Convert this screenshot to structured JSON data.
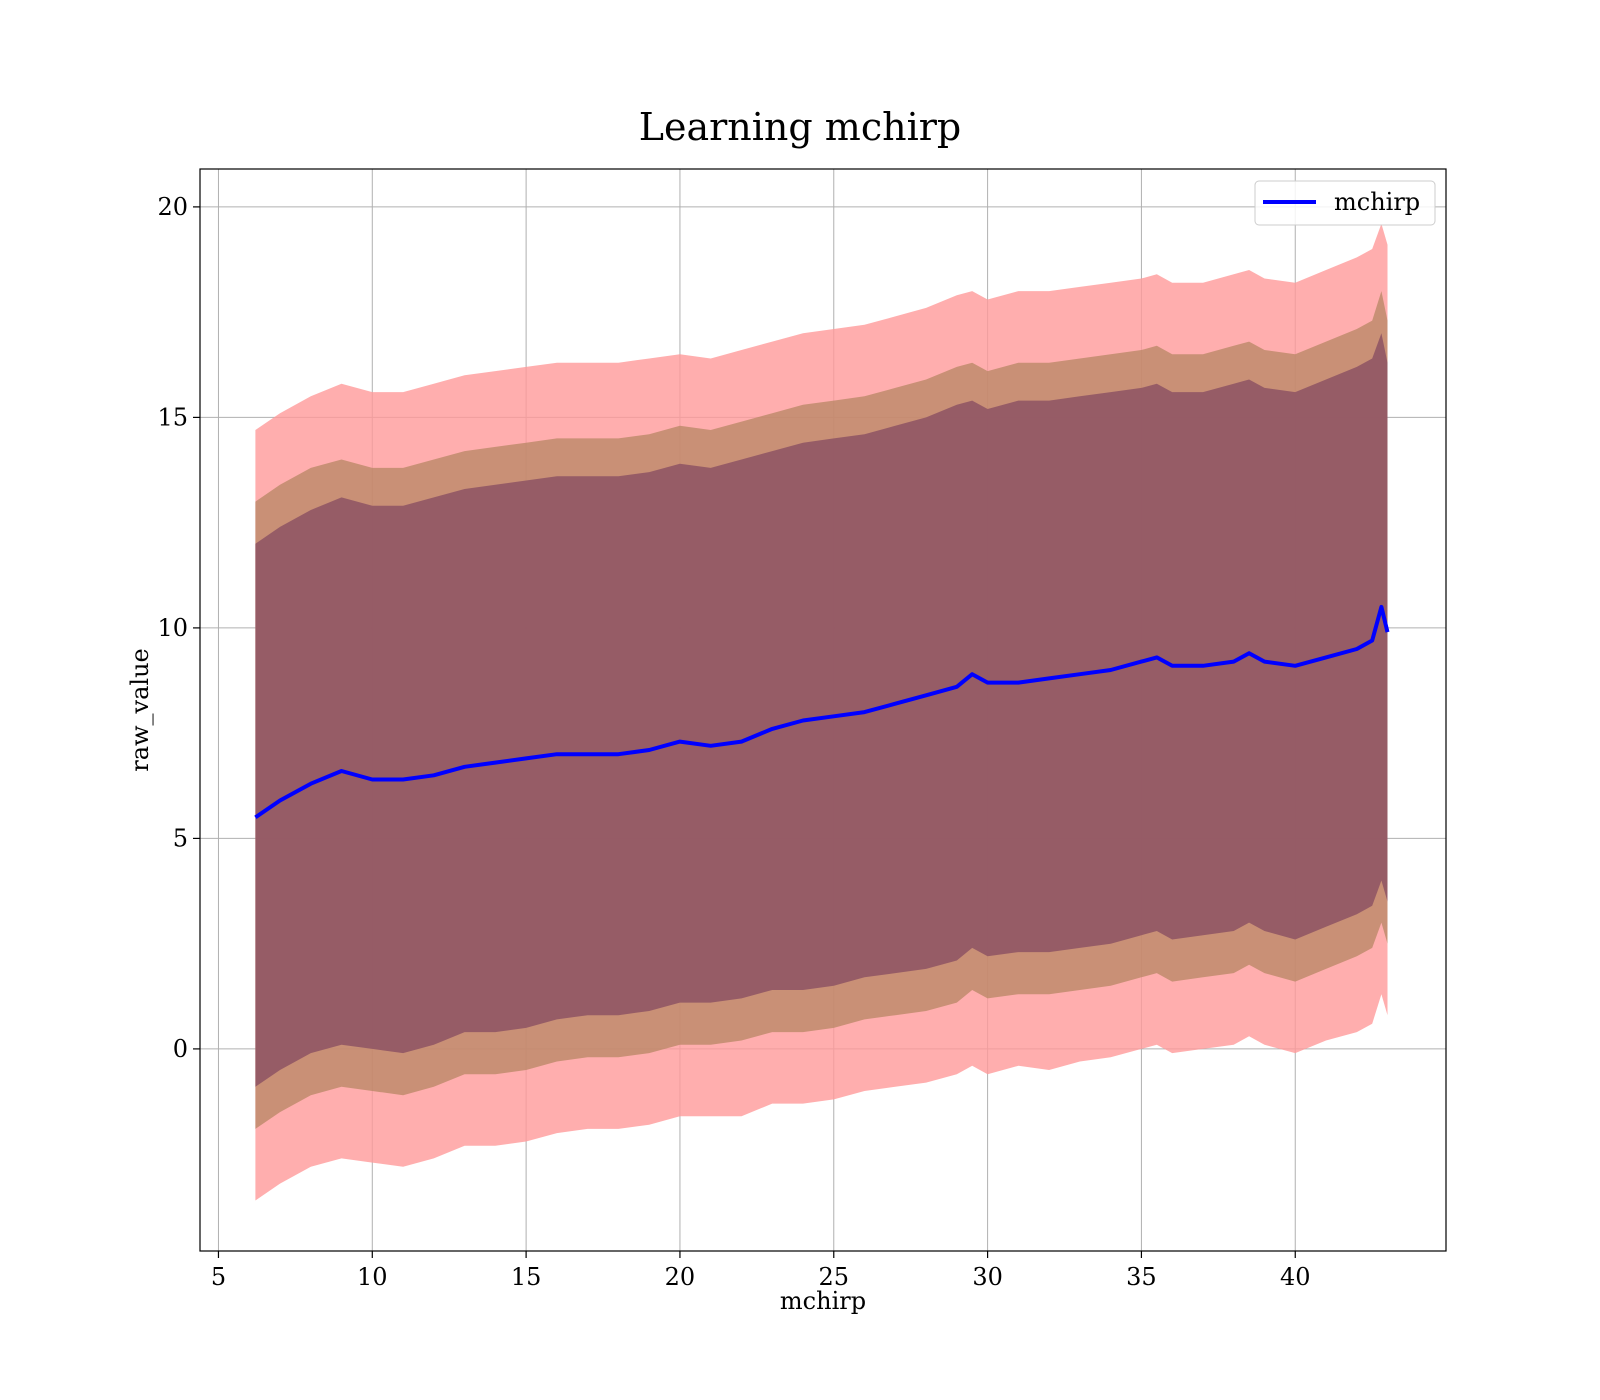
{
  "chart_data": {
    "type": "line",
    "title": "Learning mchirp",
    "xlabel": "mchirp",
    "ylabel": "raw_value",
    "xlim": [
      4.4,
      44.9
    ],
    "ylim": [
      -4.8,
      20.9
    ],
    "x_ticks": [
      5,
      10,
      15,
      20,
      25,
      30,
      35,
      40
    ],
    "y_ticks": [
      0,
      5,
      10,
      15,
      20
    ],
    "x_tick_labels": [
      "5",
      "10",
      "15",
      "20",
      "25",
      "30",
      "35",
      "40"
    ],
    "y_tick_labels": [
      "0",
      "5",
      "10",
      "15",
      "20"
    ],
    "grid": true,
    "legend": {
      "position": "top-right",
      "entries": [
        "mchirp"
      ]
    },
    "colors": {
      "line": "#0000ff",
      "band_outer": "#ff9a9a",
      "band_middle": "#b78563",
      "band_inner": "#8a4f63"
    },
    "x": [
      6.2,
      7.0,
      8.0,
      9.0,
      10.0,
      11.0,
      12.0,
      13.0,
      14.0,
      15.0,
      16.0,
      17.0,
      18.0,
      19.0,
      20.0,
      21.0,
      22.0,
      23.0,
      24.0,
      25.0,
      26.0,
      27.0,
      28.0,
      29.0,
      29.5,
      30.0,
      31.0,
      32.0,
      33.0,
      34.0,
      35.0,
      35.5,
      36.0,
      37.0,
      38.0,
      38.5,
      39.0,
      40.0,
      41.0,
      42.0,
      42.5,
      42.8,
      43.0
    ],
    "series": [
      {
        "name": "mchirp",
        "values": [
          5.5,
          5.9,
          6.3,
          6.6,
          6.4,
          6.4,
          6.5,
          6.7,
          6.8,
          6.9,
          7.0,
          7.0,
          7.0,
          7.1,
          7.3,
          7.2,
          7.3,
          7.6,
          7.8,
          7.9,
          8.0,
          8.2,
          8.4,
          8.6,
          8.9,
          8.7,
          8.7,
          8.8,
          8.9,
          9.0,
          9.2,
          9.3,
          9.1,
          9.1,
          9.2,
          9.4,
          9.2,
          9.1,
          9.3,
          9.5,
          9.7,
          10.5,
          9.9
        ]
      }
    ],
    "bands": [
      {
        "lower": [
          -3.6,
          -3.2,
          -2.8,
          -2.6,
          -2.7,
          -2.8,
          -2.6,
          -2.3,
          -2.3,
          -2.2,
          -2.0,
          -1.9,
          -1.9,
          -1.8,
          -1.6,
          -1.6,
          -1.6,
          -1.3,
          -1.3,
          -1.2,
          -1.0,
          -0.9,
          -0.8,
          -0.6,
          -0.4,
          -0.6,
          -0.4,
          -0.5,
          -0.3,
          -0.2,
          0.0,
          0.1,
          -0.1,
          0.0,
          0.1,
          0.3,
          0.1,
          -0.1,
          0.2,
          0.4,
          0.6,
          1.3,
          0.8
        ],
        "upper": [
          14.7,
          15.1,
          15.5,
          15.8,
          15.6,
          15.6,
          15.8,
          16.0,
          16.1,
          16.2,
          16.3,
          16.3,
          16.3,
          16.4,
          16.5,
          16.4,
          16.6,
          16.8,
          17.0,
          17.1,
          17.2,
          17.4,
          17.6,
          17.9,
          18.0,
          17.8,
          18.0,
          18.0,
          18.1,
          18.2,
          18.3,
          18.4,
          18.2,
          18.2,
          18.4,
          18.5,
          18.3,
          18.2,
          18.5,
          18.8,
          19.0,
          19.6,
          19.1
        ]
      },
      {
        "lower": [
          -1.9,
          -1.5,
          -1.1,
          -0.9,
          -1.0,
          -1.1,
          -0.9,
          -0.6,
          -0.6,
          -0.5,
          -0.3,
          -0.2,
          -0.2,
          -0.1,
          0.1,
          0.1,
          0.2,
          0.4,
          0.4,
          0.5,
          0.7,
          0.8,
          0.9,
          1.1,
          1.4,
          1.2,
          1.3,
          1.3,
          1.4,
          1.5,
          1.7,
          1.8,
          1.6,
          1.7,
          1.8,
          2.0,
          1.8,
          1.6,
          1.9,
          2.2,
          2.4,
          3.0,
          2.5
        ],
        "upper": [
          13.0,
          13.4,
          13.8,
          14.0,
          13.8,
          13.8,
          14.0,
          14.2,
          14.3,
          14.4,
          14.5,
          14.5,
          14.5,
          14.6,
          14.8,
          14.7,
          14.9,
          15.1,
          15.3,
          15.4,
          15.5,
          15.7,
          15.9,
          16.2,
          16.3,
          16.1,
          16.3,
          16.3,
          16.4,
          16.5,
          16.6,
          16.7,
          16.5,
          16.5,
          16.7,
          16.8,
          16.6,
          16.5,
          16.8,
          17.1,
          17.3,
          18.0,
          17.3
        ]
      },
      {
        "lower": [
          -0.9,
          -0.5,
          -0.1,
          0.1,
          0.0,
          -0.1,
          0.1,
          0.4,
          0.4,
          0.5,
          0.7,
          0.8,
          0.8,
          0.9,
          1.1,
          1.1,
          1.2,
          1.4,
          1.4,
          1.5,
          1.7,
          1.8,
          1.9,
          2.1,
          2.4,
          2.2,
          2.3,
          2.3,
          2.4,
          2.5,
          2.7,
          2.8,
          2.6,
          2.7,
          2.8,
          3.0,
          2.8,
          2.6,
          2.9,
          3.2,
          3.4,
          4.0,
          3.5
        ],
        "upper": [
          12.0,
          12.4,
          12.8,
          13.1,
          12.9,
          12.9,
          13.1,
          13.3,
          13.4,
          13.5,
          13.6,
          13.6,
          13.6,
          13.7,
          13.9,
          13.8,
          14.0,
          14.2,
          14.4,
          14.5,
          14.6,
          14.8,
          15.0,
          15.3,
          15.4,
          15.2,
          15.4,
          15.4,
          15.5,
          15.6,
          15.7,
          15.8,
          15.6,
          15.6,
          15.8,
          15.9,
          15.7,
          15.6,
          15.9,
          16.2,
          16.4,
          17.0,
          16.3
        ]
      }
    ]
  }
}
